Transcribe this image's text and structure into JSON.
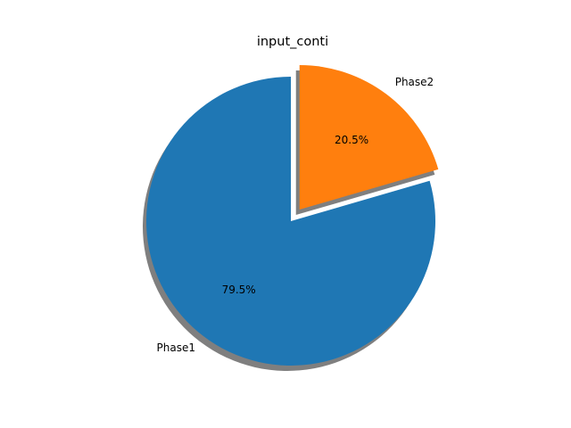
{
  "chart_data": {
    "type": "pie",
    "title": "input_conti",
    "labels": [
      "Phase1",
      "Phase2"
    ],
    "values": [
      79.5,
      20.5
    ],
    "percent_labels": [
      "79.5%",
      "20.5%"
    ],
    "colors": [
      "#1f77b4",
      "#ff7f0e"
    ],
    "shadow_color": "#7f7f7f",
    "explode": [
      0,
      0.1
    ],
    "start_angle_deg": 90,
    "direction": "counterclockwise",
    "shadow": true
  }
}
